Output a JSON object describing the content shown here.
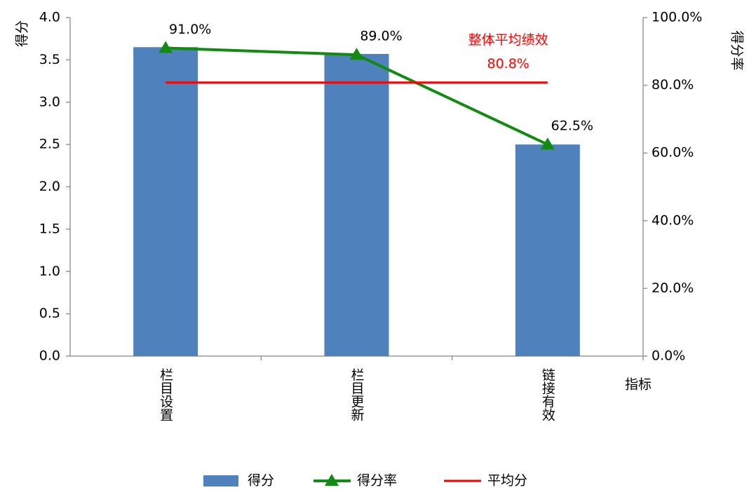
{
  "chart_data": {
    "type": "bar_line",
    "categories": [
      "栏目设置",
      "栏目更新",
      "链接有效"
    ],
    "y_label": "得分",
    "y2_label": "得分率",
    "x_label": "指标",
    "ylim": [
      0,
      4
    ],
    "yticks": [
      {
        "value": 0,
        "label": "0.0"
      },
      0.5,
      {
        "value": 1,
        "label": "1.0"
      },
      1.5,
      {
        "value": 2,
        "label": "2.0"
      },
      2.5,
      {
        "value": 3,
        "label": "3.0"
      },
      3.5,
      {
        "value": 4,
        "label": "4.0"
      }
    ],
    "y2lim": [
      0,
      100
    ],
    "y2ticks": [
      {
        "value": 0,
        "label": "0.0%"
      },
      {
        "value": 20,
        "label": "20.0%"
      },
      {
        "value": 40,
        "label": "40.0%"
      },
      {
        "value": 60,
        "label": "60.0%"
      },
      {
        "value": 80,
        "label": "80.0%"
      },
      {
        "value": 100,
        "label": "100.0%"
      }
    ],
    "series": [
      {
        "name": "得分",
        "type": "bar",
        "color": "#4f81bd",
        "values": [
          3.65,
          3.57,
          2.5
        ]
      },
      {
        "name": "得分率",
        "type": "line",
        "axis": "y2",
        "color": "#138a13",
        "values": [
          91.0,
          89.0,
          62.5
        ],
        "value_labels": [
          "91.0%",
          "89.0%",
          "62.5%"
        ]
      },
      {
        "name": "平均分",
        "type": "hline",
        "axis": "y2",
        "color": "#ff0000",
        "values": [
          80.8,
          80.8,
          80.8
        ],
        "annotation": "整体平均绩效",
        "value_label": "80.8%"
      }
    ]
  }
}
